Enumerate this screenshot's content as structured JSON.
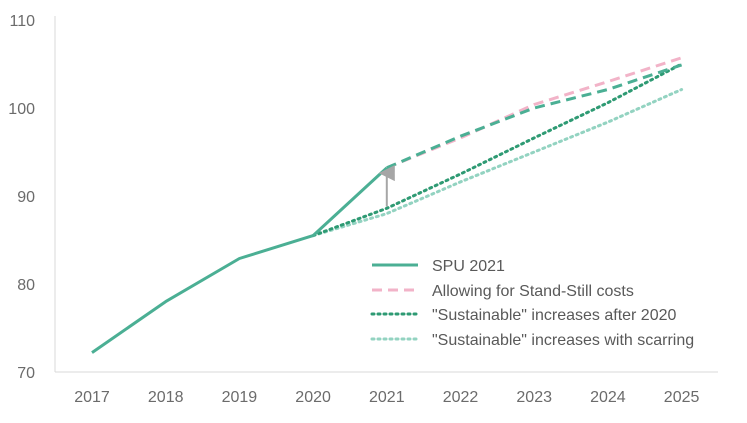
{
  "chart_data": {
    "type": "line",
    "title": "",
    "xlabel": "",
    "ylabel": "",
    "x": [
      "2017",
      "2018",
      "2019",
      "2020",
      "2021",
      "2022",
      "2023",
      "2024",
      "2025"
    ],
    "ylim": [
      70,
      110
    ],
    "yticks": [
      70,
      80,
      90,
      100,
      110
    ],
    "grid": false,
    "legend_position": "bottom-right",
    "series": [
      {
        "name": "SPU 2021",
        "style": "solid+dashed",
        "color": "#4BAF94",
        "points": [
          [
            2017,
            72.2
          ],
          [
            2018,
            78.0
          ],
          [
            2019,
            82.9
          ],
          [
            2020,
            85.5
          ],
          [
            2021,
            93.2
          ],
          [
            2022,
            96.8
          ],
          [
            2023,
            100.0
          ],
          [
            2024,
            102.1
          ],
          [
            2025,
            104.9
          ]
        ]
      },
      {
        "name": "Allowing for Stand-Still costs",
        "style": "dashed",
        "color": "#F2B3C8",
        "points": [
          [
            2021,
            93.2
          ],
          [
            2022,
            96.6
          ],
          [
            2023,
            100.4
          ],
          [
            2024,
            103.0
          ],
          [
            2025,
            105.7
          ]
        ]
      },
      {
        "name": "\"Sustainable\" increases after 2020",
        "style": "dotted",
        "color": "#2E9A73",
        "points": [
          [
            2020,
            85.5
          ],
          [
            2021,
            88.6
          ],
          [
            2022,
            92.5
          ],
          [
            2023,
            96.6
          ],
          [
            2024,
            100.6
          ],
          [
            2025,
            105.0
          ]
        ]
      },
      {
        "name": "\"Sustainable\" increases with scarring",
        "style": "dotted",
        "color": "#93D3C1",
        "points": [
          [
            2020,
            85.5
          ],
          [
            2021,
            88.0
          ],
          [
            2022,
            91.6
          ],
          [
            2023,
            95.0
          ],
          [
            2024,
            98.4
          ],
          [
            2025,
            102.1
          ]
        ]
      }
    ],
    "annotations": [
      {
        "type": "arrow",
        "x": 2021,
        "y_from": 88.8,
        "y_to": 92.6,
        "color": "#A6A6A6"
      }
    ]
  }
}
